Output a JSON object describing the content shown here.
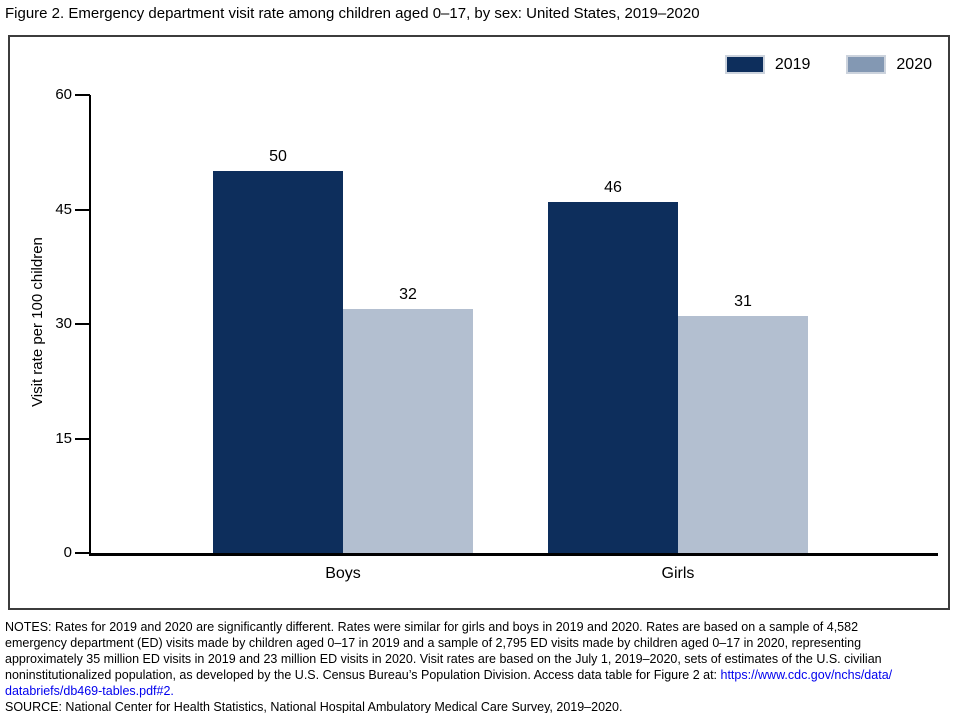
{
  "title": "Figure 2. Emergency department visit rate among children aged 0–17, by sex: United States, 2019–2020",
  "chart_data": {
    "type": "bar",
    "categories": [
      "Boys",
      "Girls"
    ],
    "series": [
      {
        "name": "2019",
        "values": [
          50,
          46
        ],
        "color": "#0d2e5c",
        "legend_swatch": "#0d2e5c"
      },
      {
        "name": "2020",
        "values": [
          32,
          31
        ],
        "color": "#b3bfd0",
        "legend_swatch": "#8398b3"
      }
    ],
    "title": "Figure 2. Emergency department visit rate among children aged 0–17, by sex: United States, 2019–2020",
    "xlabel": "",
    "ylabel": "Visit rate per 100 children",
    "ylim": [
      0,
      60
    ],
    "yticks": [
      0,
      15,
      30,
      45,
      60
    ],
    "grid": false,
    "legend_position": "top-right",
    "bar_value_labels": [
      "50",
      "32",
      "46",
      "31"
    ]
  },
  "notes": {
    "lines": [
      [
        {
          "t": "NOTES: Rates for 2019 and 2020 are significantly different. Rates were similar for girls and boys in 2019 and 2020. Rates are based on a sample of 4,582"
        }
      ],
      [
        {
          "t": "emergency department (ED) visits made by children aged 0–17 in 2019 and a sample of 2,795 ED visits made by children aged 0–17 in 2020, representing"
        }
      ],
      [
        {
          "t": "approximately 35 million ED visits in 2019 and 23 million ED visits in 2020. Visit rates are based on the July 1, 2019–2020, sets of estimates of the U.S. civilian"
        }
      ],
      [
        {
          "t": "noninstitutionalized population, as developed by the U.S. Census Bureau’s Population Division. Access data table for Figure 2 at: "
        },
        {
          "t": "https://www.cdc.gov/nchs/data/",
          "link": true
        }
      ],
      [
        {
          "t": "databriefs/db469-tables.pdf#2.",
          "link": true
        }
      ],
      [
        {
          "t": "SOURCE: National Center for Health Statistics, National Hospital Ambulatory Medical Care Survey, 2019–2020."
        }
      ]
    ]
  },
  "colors": {
    "bar_2019": "#0d2e5c",
    "bar_2020": "#b3bfd0",
    "link": "#0000ee",
    "axis": "#000000",
    "panel_border": "#3c3c3c"
  }
}
